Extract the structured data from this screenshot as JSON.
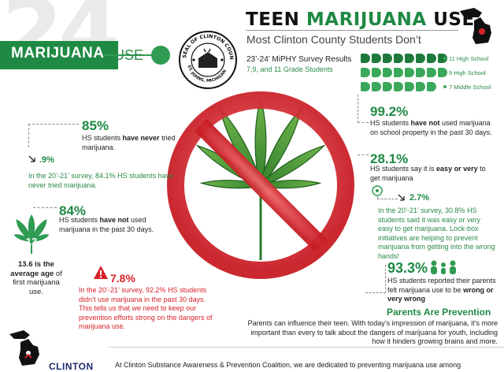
{
  "header": {
    "big_number": "24",
    "band_label": "MARIJUANA",
    "band_suffix": "USE",
    "title_part1": "TEEN ",
    "title_part2": "MARIJUANA",
    "title_part3": " USE",
    "subtitle": "Most Clinton County Students Don’t",
    "seal_text_top": "SEAL OF CLINTON COUNTY",
    "seal_text_bottom": "ST. JOHNS, MICHIGAN"
  },
  "survey": {
    "title": "23’-24’ MiPHY Survey Results",
    "grades": "7,9, and 11 Grade Students",
    "rows": [
      {
        "label": "11 High School",
        "count": 8
      },
      {
        "label": "9 High School",
        "count": 8
      },
      {
        "label": "7 Middle School",
        "count": 7
      }
    ]
  },
  "stats": {
    "s85": {
      "value": "85%",
      "text": "HS students ",
      "bold": "have never",
      "text2": " tried marijuana.",
      "delta": ".9%",
      "note": "In the 20’-21’ survey, 84.1% HS students have never tried marijuana."
    },
    "s84": {
      "value": "84%",
      "text": "HS students ",
      "bold": "have not",
      "text2": " used marijuana in the past 30 days."
    },
    "s13": {
      "badge": "13",
      "bold": "13.6 is the average age",
      "text": " of first marijuana use."
    },
    "s78": {
      "value": "7.8%",
      "note": "In the 20’-21’ survey, 92.2% HS students didn’t use marijuana in the past 30 days. This tells us that we need to keep our prevention efforts strong on the dangers of marijuana use."
    },
    "s992": {
      "value": "99.2%",
      "text": "HS students ",
      "bold": "have not",
      "text2": " used marijuana on school property in the past 30 days."
    },
    "s281": {
      "value": "28.1%",
      "text": "HS students say it is ",
      "bold": "easy or very",
      "text2": " to get marijuana"
    },
    "s27": {
      "value": "2.7%",
      "note": "In the 20’-21’ survey, 30.8% HS students said it was easy or very easy to get marijuana. Lock-box initiatives are helping to prevent marijuana from getting into the wrong hands!"
    },
    "s933": {
      "value": "93.3%",
      "text": "HS students reported their parents felt marijuana use to be ",
      "bold": "wrong or very wrong"
    }
  },
  "parents": {
    "title": "Parents Are Prevention",
    "text": "Parents can influence their teen. With today’s impression of marijuana, it’s more important than every to talk about the dangers of marijuana for youth, including how it hinders growing brains and more."
  },
  "footer": {
    "brand": "CLINTON",
    "text": "At Clinton Substance Awareness & Prevention Coalition, we are dedicated to preventing marijuana use among"
  },
  "colors": {
    "green": "#1f8a44",
    "red": "#d8232a",
    "leaf": "#3f8f2f"
  }
}
